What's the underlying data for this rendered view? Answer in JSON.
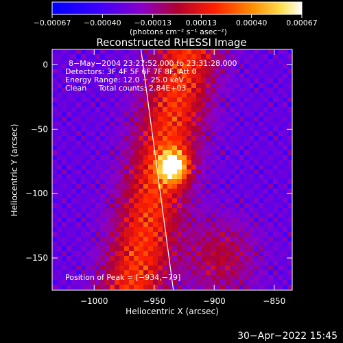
{
  "chart_data": {
    "type": "heatmap",
    "title": "Reconstructed RHESSI Image",
    "xlabel": "Heliocentric X (arcsec)",
    "ylabel": "Heliocentric Y (arcsec)",
    "xlim": [
      -1035,
      -835
    ],
    "ylim": [
      -175,
      12
    ],
    "x_ticks": [
      {
        "value": -1000,
        "label": "−1000"
      },
      {
        "value": -950,
        "label": "−950"
      },
      {
        "value": -900,
        "label": "−900"
      },
      {
        "value": -850,
        "label": "−850"
      }
    ],
    "y_ticks": [
      {
        "value": 0,
        "label": "0"
      },
      {
        "value": -50,
        "label": "−50"
      },
      {
        "value": -100,
        "label": "−100"
      },
      {
        "value": -150,
        "label": "−150"
      }
    ],
    "colorbar": {
      "min": -0.00067,
      "max": 0.00067,
      "ticks": [
        {
          "value": -0.00067,
          "label": "−0.00067"
        },
        {
          "value": -0.0004,
          "label": "−0.00040"
        },
        {
          "value": -0.00013,
          "label": "−0.00013"
        },
        {
          "value": 0.00013,
          "label": "0.00013"
        },
        {
          "value": 0.0004,
          "label": "0.00040"
        },
        {
          "value": 0.00067,
          "label": "0.00067"
        }
      ],
      "units": "(photons cm⁻² s⁻¹ asec⁻²)"
    },
    "annotations": [
      "8−May−2004 23:27:52.000 to 23:31:28.000",
      "Detectors: 3F 4F 5F 6F 7F 8F, Att 0",
      "Energy Range: 12.0 − 25.0 keV",
      "Clean     Total counts: 2.84E+03"
    ],
    "peak_label": "Position of Peak = [−934,−79]",
    "peak": {
      "x": -934,
      "y": -79
    },
    "limb_line": [
      {
        "x": -961,
        "y": 12
      },
      {
        "x": -934,
        "y": -175
      }
    ]
  },
  "footer": {
    "datetime": "30−Apr−2022 15:45"
  }
}
